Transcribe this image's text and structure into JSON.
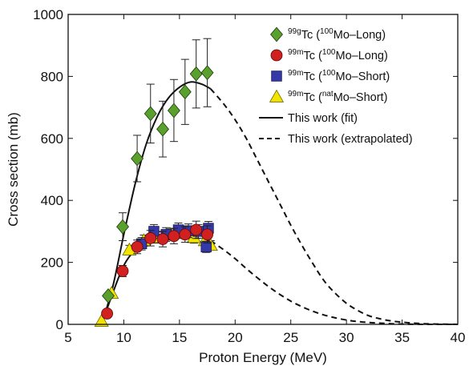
{
  "chart_data": {
    "type": "scatter",
    "xlabel": "Proton Energy (MeV)",
    "ylabel": "Cross section (mb)",
    "xlim": [
      5,
      40
    ],
    "ylim": [
      0,
      1000
    ],
    "xticks": [
      5,
      10,
      15,
      20,
      25,
      30,
      35,
      40
    ],
    "yticks": [
      0,
      200,
      400,
      600,
      800,
      1000
    ],
    "grid": false,
    "legend_position": "top-right",
    "series": [
      {
        "name_sup": "99g",
        "name_main": "Tc (",
        "name_sup2": "100",
        "name_tail": "Mo–Long)",
        "marker": "diamond",
        "color": "#5aa02c",
        "points": [
          {
            "x": 8.6,
            "y": 92,
            "err": 0
          },
          {
            "x": 9.9,
            "y": 315,
            "err": 45
          },
          {
            "x": 11.2,
            "y": 535,
            "err": 75
          },
          {
            "x": 12.4,
            "y": 680,
            "err": 95
          },
          {
            "x": 13.5,
            "y": 630,
            "err": 90
          },
          {
            "x": 14.5,
            "y": 690,
            "err": 100
          },
          {
            "x": 15.5,
            "y": 750,
            "err": 105
          },
          {
            "x": 16.5,
            "y": 808,
            "err": 110
          },
          {
            "x": 17.5,
            "y": 812,
            "err": 110
          }
        ]
      },
      {
        "name_sup": "99m",
        "name_main": "Tc (",
        "name_sup2": "100",
        "name_tail": "Mo–Long)",
        "marker": "circle",
        "color": "#d12020",
        "points": [
          {
            "x": 8.5,
            "y": 35,
            "err": 0
          },
          {
            "x": 9.9,
            "y": 172,
            "err": 18
          },
          {
            "x": 11.2,
            "y": 250,
            "err": 22
          },
          {
            "x": 12.4,
            "y": 278,
            "err": 25
          },
          {
            "x": 13.5,
            "y": 275,
            "err": 25
          },
          {
            "x": 14.5,
            "y": 285,
            "err": 25
          },
          {
            "x": 15.5,
            "y": 290,
            "err": 25
          },
          {
            "x": 16.5,
            "y": 305,
            "err": 28
          },
          {
            "x": 17.5,
            "y": 290,
            "err": 28
          }
        ]
      },
      {
        "name_sup": "99m",
        "name_main": "Tc (",
        "name_sup2": "100",
        "name_tail": "Mo–Short)",
        "marker": "square",
        "color": "#3438a8",
        "points": [
          {
            "x": 11.6,
            "y": 260,
            "err": 20
          },
          {
            "x": 12.7,
            "y": 300,
            "err": 22
          },
          {
            "x": 13.8,
            "y": 290,
            "err": 22
          },
          {
            "x": 14.9,
            "y": 305,
            "err": 22
          },
          {
            "x": 15.8,
            "y": 302,
            "err": 22
          },
          {
            "x": 16.7,
            "y": 300,
            "err": 22
          },
          {
            "x": 17.6,
            "y": 310,
            "err": 22
          },
          {
            "x": 17.4,
            "y": 250,
            "err": 18
          }
        ]
      },
      {
        "name_sup": "99m",
        "name_main": "Tc (",
        "name_sup2": "nat",
        "name_tail": "Mo–Short)",
        "marker": "triangle",
        "color": "#f2e400",
        "points": [
          {
            "x": 8.0,
            "y": 10,
            "err": 0
          },
          {
            "x": 8.9,
            "y": 100,
            "err": 0
          },
          {
            "x": 10.5,
            "y": 240,
            "err": 15
          },
          {
            "x": 11.8,
            "y": 270,
            "err": 18
          },
          {
            "x": 13.0,
            "y": 280,
            "err": 18
          },
          {
            "x": 14.2,
            "y": 290,
            "err": 18
          },
          {
            "x": 15.3,
            "y": 295,
            "err": 18
          },
          {
            "x": 16.3,
            "y": 280,
            "err": 18
          },
          {
            "x": 17.3,
            "y": 270,
            "err": 18
          },
          {
            "x": 17.8,
            "y": 255,
            "err": 15
          }
        ]
      },
      {
        "name": "This work (fit)",
        "type": "line",
        "style": "solid",
        "curves": [
          [
            [
              8.0,
              0
            ],
            [
              9.0,
              120
            ],
            [
              10.0,
              290
            ],
            [
              11.0,
              450
            ],
            [
              12.0,
              580
            ],
            [
              13.0,
              670
            ],
            [
              14.0,
              730
            ],
            [
              15.0,
              765
            ],
            [
              16.0,
              782
            ],
            [
              17.0,
              775
            ],
            [
              17.8,
              760
            ]
          ],
          [
            [
              8.0,
              0
            ],
            [
              9.0,
              100
            ],
            [
              10.0,
              190
            ],
            [
              11.0,
              240
            ],
            [
              12.0,
              265
            ],
            [
              13.0,
              278
            ],
            [
              14.0,
              285
            ],
            [
              15.0,
              290
            ],
            [
              16.0,
              292
            ],
            [
              17.0,
              285
            ],
            [
              17.8,
              270
            ]
          ]
        ]
      },
      {
        "name": "This work (extrapolated)",
        "type": "line",
        "style": "dashed",
        "curves": [
          [
            [
              17.8,
              760
            ],
            [
              19.0,
              710
            ],
            [
              20.0,
              660
            ],
            [
              21.0,
              600
            ],
            [
              22.0,
              530
            ],
            [
              23.0,
              460
            ],
            [
              24.0,
              390
            ],
            [
              25.0,
              320
            ],
            [
              26.0,
              255
            ],
            [
              27.0,
              195
            ],
            [
              28.0,
              140
            ],
            [
              29.0,
              100
            ],
            [
              30.0,
              68
            ],
            [
              31.0,
              45
            ],
            [
              32.0,
              28
            ],
            [
              33.0,
              18
            ],
            [
              34.0,
              11
            ],
            [
              35.0,
              7
            ],
            [
              36.0,
              4
            ],
            [
              37.0,
              2
            ],
            [
              38.0,
              1
            ],
            [
              40.0,
              0
            ]
          ],
          [
            [
              17.8,
              270
            ],
            [
              19.0,
              240
            ],
            [
              20.0,
              212
            ],
            [
              21.0,
              180
            ],
            [
              22.0,
              150
            ],
            [
              23.0,
              122
            ],
            [
              24.0,
              97
            ],
            [
              25.0,
              75
            ],
            [
              26.0,
              57
            ],
            [
              27.0,
              42
            ],
            [
              28.0,
              30
            ],
            [
              29.0,
              21
            ],
            [
              30.0,
              14
            ],
            [
              31.0,
              9
            ],
            [
              32.0,
              6
            ],
            [
              33.0,
              4
            ],
            [
              34.0,
              2
            ],
            [
              35.0,
              1
            ],
            [
              37.0,
              0
            ],
            [
              40.0,
              0
            ]
          ]
        ]
      }
    ]
  }
}
